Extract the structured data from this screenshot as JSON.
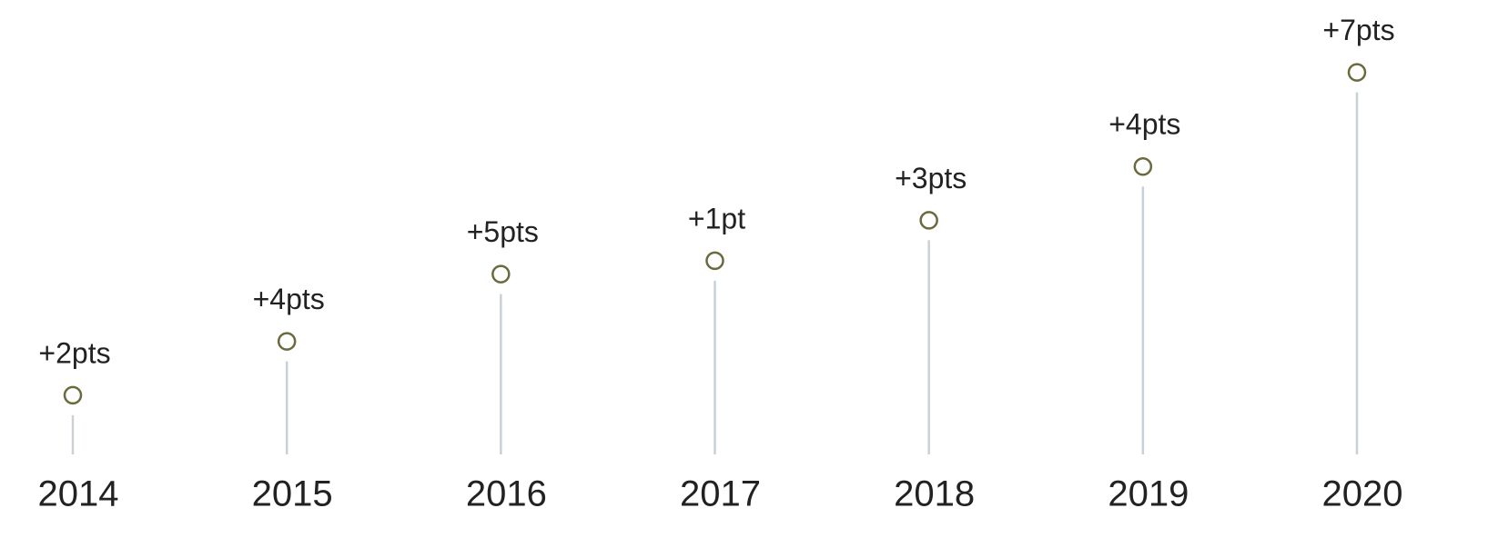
{
  "chart_data": {
    "type": "lollipop",
    "categories": [
      "2014",
      "2015",
      "2016",
      "2017",
      "2018",
      "2019",
      "2020"
    ],
    "values": [
      2,
      4,
      5,
      1,
      3,
      4,
      7
    ],
    "value_labels": [
      "+2pts",
      "+4pts",
      "+5pts",
      "+1pt",
      "+3pts",
      "+4pts",
      "+7pts"
    ],
    "ylim": [
      -2.4,
      28
    ],
    "color": "#6b6a3f",
    "stem_color": "#c9d0d6"
  }
}
